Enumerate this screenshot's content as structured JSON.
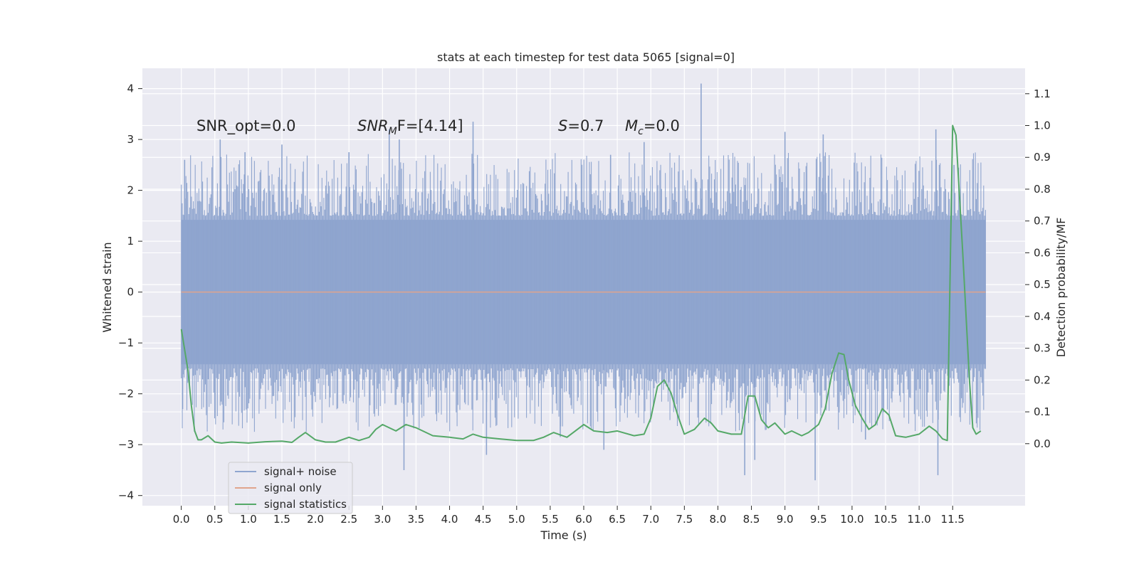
{
  "chart_data": {
    "type": "line",
    "title": "stats at each timestep for test data 5065 [signal=0]",
    "xlabel": "Time (s)",
    "ylabel_left": "Whitened strain",
    "ylabel_right": "Detection probability/MF",
    "xlim": [
      -0.58,
      12.58
    ],
    "ylim_left": [
      -4.2,
      4.4
    ],
    "ylim_right": [
      -0.195,
      1.18
    ],
    "x_ticks": [
      0.0,
      0.5,
      1.0,
      1.5,
      2.0,
      2.5,
      3.0,
      3.5,
      4.0,
      4.5,
      5.0,
      5.5,
      6.0,
      6.5,
      7.0,
      7.5,
      8.0,
      8.5,
      9.0,
      9.5,
      10.0,
      10.5,
      11.0,
      11.5
    ],
    "x_tick_labels": [
      "0.0",
      "0.5",
      "1.0",
      "1.5",
      "2.0",
      "2.5",
      "3.0",
      "3.5",
      "4.0",
      "4.5",
      "5.0",
      "5.5",
      "6.0",
      "6.5",
      "7.0",
      "7.5",
      "8.0",
      "8.5",
      "9.0",
      "9.5",
      "10.0",
      "10.5",
      "11.0",
      "11.5"
    ],
    "y_left_ticks": [
      -4,
      -3,
      -2,
      -1,
      0,
      1,
      2,
      3,
      4
    ],
    "y_left_tick_labels": [
      "−4",
      "−3",
      "−2",
      "−1",
      "0",
      "1",
      "2",
      "3",
      "4"
    ],
    "y_right_ticks": [
      0.0,
      0.1,
      0.2,
      0.3,
      0.4,
      0.5,
      0.6,
      0.7,
      0.8,
      0.9,
      1.0,
      1.1
    ],
    "y_right_tick_labels": [
      "0.0",
      "0.1",
      "0.2",
      "0.3",
      "0.4",
      "0.5",
      "0.6",
      "0.7",
      "0.8",
      "0.9",
      "1.0",
      "1.1"
    ],
    "annotations": {
      "snr_opt": "SNR_opt=0.0",
      "snr_mf_main": "SNR",
      "snr_mf_sub": "M",
      "snr_mf_tail": "F=[4.14]",
      "s_main": "S",
      "s_tail": "=0.7",
      "mc_main": "M",
      "mc_sub": "c",
      "mc_tail": "=0.0"
    },
    "legend": {
      "position": "lower-left",
      "entries": [
        {
          "label": "signal+ noise",
          "color": "#8fa5cf"
        },
        {
          "label": "signal only",
          "color": "#e0a48c"
        },
        {
          "label": "signal statistics",
          "color": "#55a868"
        }
      ]
    },
    "series": [
      {
        "name": "signal+ noise",
        "axis": "left",
        "style": "dense noise, approx. 1.42 std, alpha 0.85",
        "t_start": 0.0,
        "t_end": 11.99,
        "color": "#8fa5cf",
        "spikes": [
          {
            "t": 0.05,
            "v": 2.6
          },
          {
            "t": 0.58,
            "v": 3.0
          },
          {
            "t": 0.95,
            "v": 2.75
          },
          {
            "t": 1.5,
            "v": 2.9
          },
          {
            "t": 2.5,
            "v": 2.75
          },
          {
            "t": 3.1,
            "v": 3.2
          },
          {
            "t": 3.25,
            "v": 3.0
          },
          {
            "t": 4.35,
            "v": 3.35
          },
          {
            "t": 6.4,
            "v": 2.7
          },
          {
            "t": 6.9,
            "v": 2.95
          },
          {
            "t": 7.75,
            "v": 4.1
          },
          {
            "t": 9.0,
            "v": 3.15
          },
          {
            "t": 9.57,
            "v": 3.1
          },
          {
            "t": 11.25,
            "v": 3.2
          },
          {
            "t": 11.52,
            "v": 2.5
          },
          {
            "t": 0.02,
            "v": -2.3
          },
          {
            "t": 3.32,
            "v": -3.5
          },
          {
            "t": 4.55,
            "v": -3.2
          },
          {
            "t": 6.3,
            "v": -3.1
          },
          {
            "t": 8.4,
            "v": -3.6
          },
          {
            "t": 8.55,
            "v": -3.3
          },
          {
            "t": 9.45,
            "v": -3.7
          },
          {
            "t": 11.28,
            "v": -3.6
          },
          {
            "t": 5.65,
            "v": -2.85
          },
          {
            "t": 10.2,
            "v": -2.9
          }
        ]
      },
      {
        "name": "signal only",
        "axis": "left",
        "color": "#e0a48c",
        "x": [
          0.0,
          11.99
        ],
        "y": [
          0.0,
          0.0
        ]
      },
      {
        "name": "signal statistics",
        "axis": "right",
        "color": "#55a868",
        "x": [
          0.0,
          0.1,
          0.15,
          0.2,
          0.25,
          0.3,
          0.4,
          0.5,
          0.6,
          0.75,
          1.0,
          1.25,
          1.5,
          1.65,
          1.75,
          1.85,
          2.0,
          2.15,
          2.3,
          2.5,
          2.65,
          2.8,
          2.9,
          3.0,
          3.1,
          3.2,
          3.35,
          3.5,
          3.75,
          4.0,
          4.2,
          4.35,
          4.5,
          4.75,
          5.0,
          5.25,
          5.4,
          5.55,
          5.75,
          6.0,
          6.15,
          6.35,
          6.5,
          6.75,
          6.9,
          7.0,
          7.1,
          7.2,
          7.3,
          7.4,
          7.5,
          7.65,
          7.8,
          7.9,
          8.0,
          8.2,
          8.35,
          8.45,
          8.55,
          8.65,
          8.75,
          8.85,
          9.0,
          9.1,
          9.25,
          9.35,
          9.5,
          9.6,
          9.7,
          9.8,
          9.88,
          9.95,
          10.05,
          10.15,
          10.25,
          10.35,
          10.45,
          10.55,
          10.65,
          10.8,
          11.0,
          11.15,
          11.25,
          11.35,
          11.42,
          11.5,
          11.55,
          11.65,
          11.75,
          11.8,
          11.85,
          11.92
        ],
        "y": [
          0.36,
          0.23,
          0.12,
          0.04,
          0.012,
          0.012,
          0.025,
          0.005,
          0.002,
          0.005,
          0.002,
          0.006,
          0.008,
          0.004,
          0.02,
          0.035,
          0.012,
          0.005,
          0.005,
          0.02,
          0.01,
          0.02,
          0.045,
          0.06,
          0.05,
          0.04,
          0.06,
          0.05,
          0.025,
          0.02,
          0.015,
          0.03,
          0.02,
          0.015,
          0.01,
          0.01,
          0.02,
          0.035,
          0.02,
          0.06,
          0.04,
          0.035,
          0.04,
          0.025,
          0.03,
          0.08,
          0.18,
          0.2,
          0.16,
          0.09,
          0.03,
          0.045,
          0.08,
          0.065,
          0.04,
          0.03,
          0.03,
          0.15,
          0.15,
          0.075,
          0.05,
          0.065,
          0.03,
          0.04,
          0.025,
          0.035,
          0.06,
          0.11,
          0.22,
          0.285,
          0.28,
          0.2,
          0.12,
          0.08,
          0.045,
          0.06,
          0.11,
          0.09,
          0.025,
          0.02,
          0.03,
          0.055,
          0.04,
          0.015,
          0.01,
          1.0,
          0.97,
          0.6,
          0.2,
          0.05,
          0.03,
          0.04
        ]
      }
    ]
  }
}
